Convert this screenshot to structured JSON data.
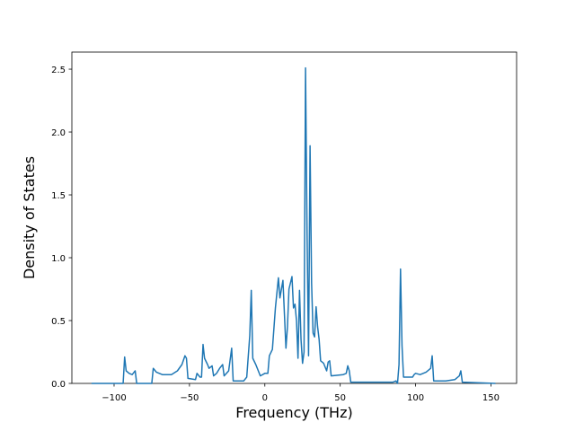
{
  "chart_data": {
    "type": "line",
    "xlabel": "Frequency (THz)",
    "ylabel": "Density of States",
    "color": "#1f77b4",
    "x": [
      -115,
      -94,
      -93,
      -92,
      -90,
      -88,
      -86,
      -85,
      -75,
      -74,
      -72,
      -68,
      -62,
      -58,
      -55,
      -53,
      -52,
      -51,
      -46,
      -45,
      -43,
      -42,
      -41,
      -40,
      -38,
      -37,
      -35,
      -34,
      -32,
      -30,
      -28,
      -27,
      -24,
      -22,
      -21,
      -14,
      -12,
      -10,
      -9,
      -8,
      -6,
      -3,
      0,
      2,
      3,
      5,
      7,
      9,
      10,
      12,
      13,
      14,
      15,
      16,
      17,
      18,
      19,
      20,
      21,
      22,
      23,
      24,
      25,
      26,
      27,
      28,
      29,
      30,
      31,
      32,
      33,
      34,
      35,
      36,
      37,
      39,
      41,
      42,
      43,
      44,
      52,
      54,
      55,
      56,
      57,
      85,
      87,
      88,
      89,
      90,
      91,
      92,
      98,
      99,
      100,
      103,
      107,
      110,
      111,
      112,
      120,
      126,
      129,
      130,
      131,
      153
    ],
    "values": [
      0,
      0,
      0.21,
      0.1,
      0.08,
      0.07,
      0.1,
      0,
      0,
      0.12,
      0.09,
      0.07,
      0.07,
      0.1,
      0.15,
      0.22,
      0.2,
      0.04,
      0.03,
      0.08,
      0.05,
      0.05,
      0.31,
      0.2,
      0.15,
      0.12,
      0.14,
      0.06,
      0.08,
      0.12,
      0.15,
      0.06,
      0.1,
      0.28,
      0.02,
      0.02,
      0.05,
      0.38,
      0.74,
      0.2,
      0.15,
      0.06,
      0.08,
      0.08,
      0.22,
      0.27,
      0.6,
      0.84,
      0.68,
      0.82,
      0.55,
      0.28,
      0.45,
      0.75,
      0.8,
      0.85,
      0.6,
      0.63,
      0.5,
      0.2,
      0.74,
      0.35,
      0.16,
      0.25,
      2.51,
      1.2,
      0.22,
      1.89,
      0.8,
      0.4,
      0.37,
      0.61,
      0.45,
      0.35,
      0.18,
      0.16,
      0.1,
      0.17,
      0.18,
      0.06,
      0.07,
      0.08,
      0.14,
      0.1,
      0.01,
      0.01,
      0.02,
      0,
      0.15,
      0.91,
      0.3,
      0.05,
      0.05,
      0.07,
      0.08,
      0.07,
      0.09,
      0.12,
      0.22,
      0.02,
      0.02,
      0.03,
      0.06,
      0.1,
      0.01,
      0
    ],
    "xlim": [
      -128,
      167
    ],
    "ylim": [
      0,
      2.636
    ],
    "xticks": [
      {
        "value": -100,
        "label": "−100"
      },
      {
        "value": -50,
        "label": "−50"
      },
      0,
      50,
      100,
      150
    ],
    "yticks": [
      {
        "value": 0,
        "label": "0.0"
      },
      {
        "value": 0.5,
        "label": "0.5"
      },
      {
        "value": 1,
        "label": "1.0"
      },
      {
        "value": 1.5,
        "label": "1.5"
      },
      {
        "value": 2,
        "label": "2.0"
      },
      {
        "value": 2.5,
        "label": "2.5"
      }
    ]
  }
}
